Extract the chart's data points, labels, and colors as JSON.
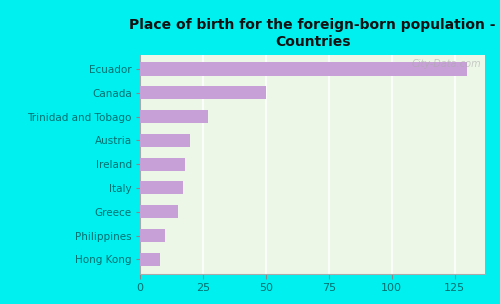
{
  "title": "Place of birth for the foreign-born population -\nCountries",
  "categories": [
    "Ecuador",
    "Canada",
    "Trinidad and Tobago",
    "Austria",
    "Ireland",
    "Italy",
    "Greece",
    "Philippines",
    "Hong Kong"
  ],
  "values": [
    130,
    50,
    27,
    20,
    18,
    17,
    15,
    10,
    8
  ],
  "bar_color": "#c8a0d8",
  "background_color": "#00f0f0",
  "plot_bg_color": "#edf7e8",
  "text_color": "#007070",
  "title_color": "#111111",
  "xlim": [
    0,
    137
  ],
  "xticks": [
    0,
    25,
    50,
    75,
    100,
    125
  ],
  "watermark": "City-Data.com",
  "bar_height": 0.55
}
